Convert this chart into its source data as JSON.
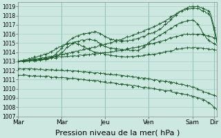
{
  "bg_color": "#cce8e0",
  "grid_color": "#99ccbb",
  "line_color": "#1a5c2a",
  "xlabel": "Pression niveau de la mer( hPa )",
  "xlabel_fontsize": 8,
  "ylim": [
    1007,
    1019.5
  ],
  "yticks": [
    1007,
    1008,
    1009,
    1010,
    1011,
    1012,
    1013,
    1014,
    1015,
    1016,
    1017,
    1018,
    1019
  ],
  "xtick_labels": [
    "Mar",
    "Mar",
    "Jeu",
    "Ven",
    "Sam",
    "Dir"
  ],
  "xtick_positions": [
    0,
    48,
    96,
    144,
    192,
    216
  ],
  "n_points": 220,
  "total_days": 6,
  "marker_every": 6
}
